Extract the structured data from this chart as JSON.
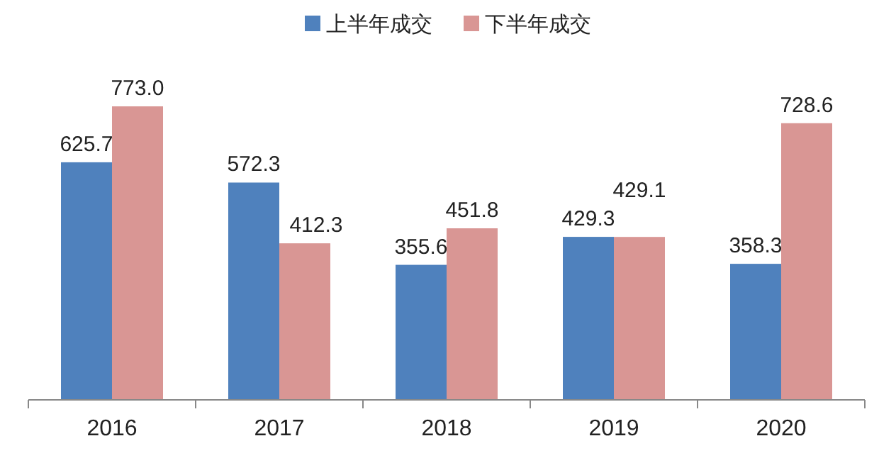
{
  "chart_data": {
    "type": "bar",
    "categories": [
      "2016",
      "2017",
      "2018",
      "2019",
      "2020"
    ],
    "series": [
      {
        "name": "上半年成交",
        "color": "#4f81bd",
        "values": [
          625.7,
          572.3,
          355.6,
          429.3,
          358.3
        ],
        "value_labels": [
          "625.7",
          "572.3",
          "355.6",
          "429.3",
          "358.3"
        ]
      },
      {
        "name": "下半年成交",
        "color": "#d99694",
        "values": [
          773.0,
          412.3,
          451.8,
          429.1,
          728.6
        ],
        "value_labels": [
          "773.0",
          "412.3",
          "451.8",
          "429.1",
          "728.6"
        ]
      }
    ],
    "legend": "top"
  }
}
